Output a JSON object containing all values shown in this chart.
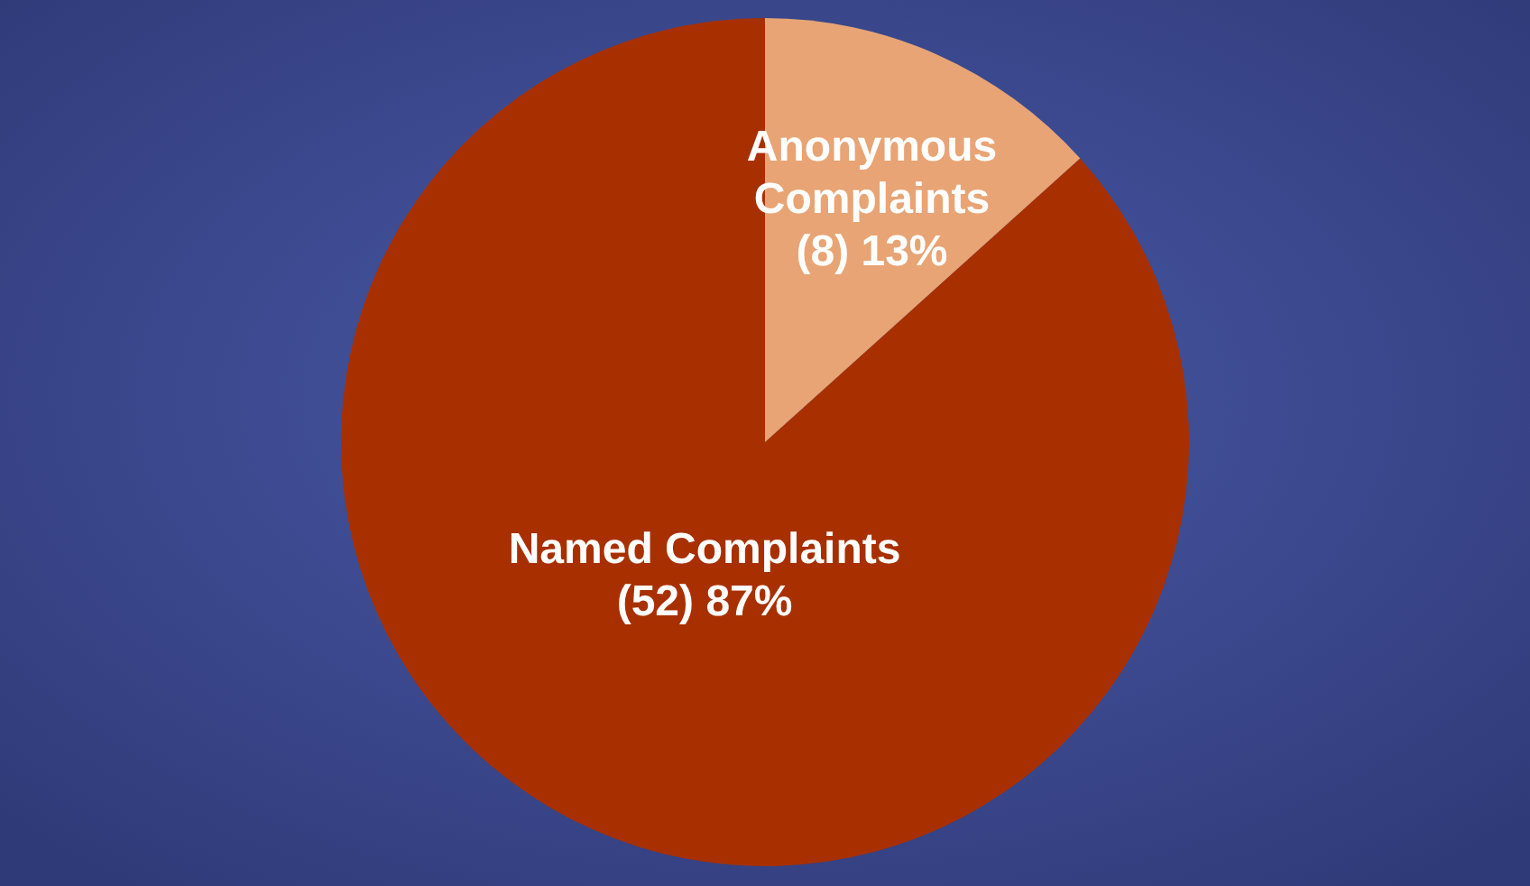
{
  "chart_data": {
    "type": "pie",
    "categories": [
      "Named Complaints",
      "Anonymous Complaints"
    ],
    "values": [
      52,
      8
    ],
    "colors": [
      "#a83000",
      "#e8a474"
    ],
    "value_labels": [
      "(52) 87%",
      "(8) 13%"
    ]
  }
}
